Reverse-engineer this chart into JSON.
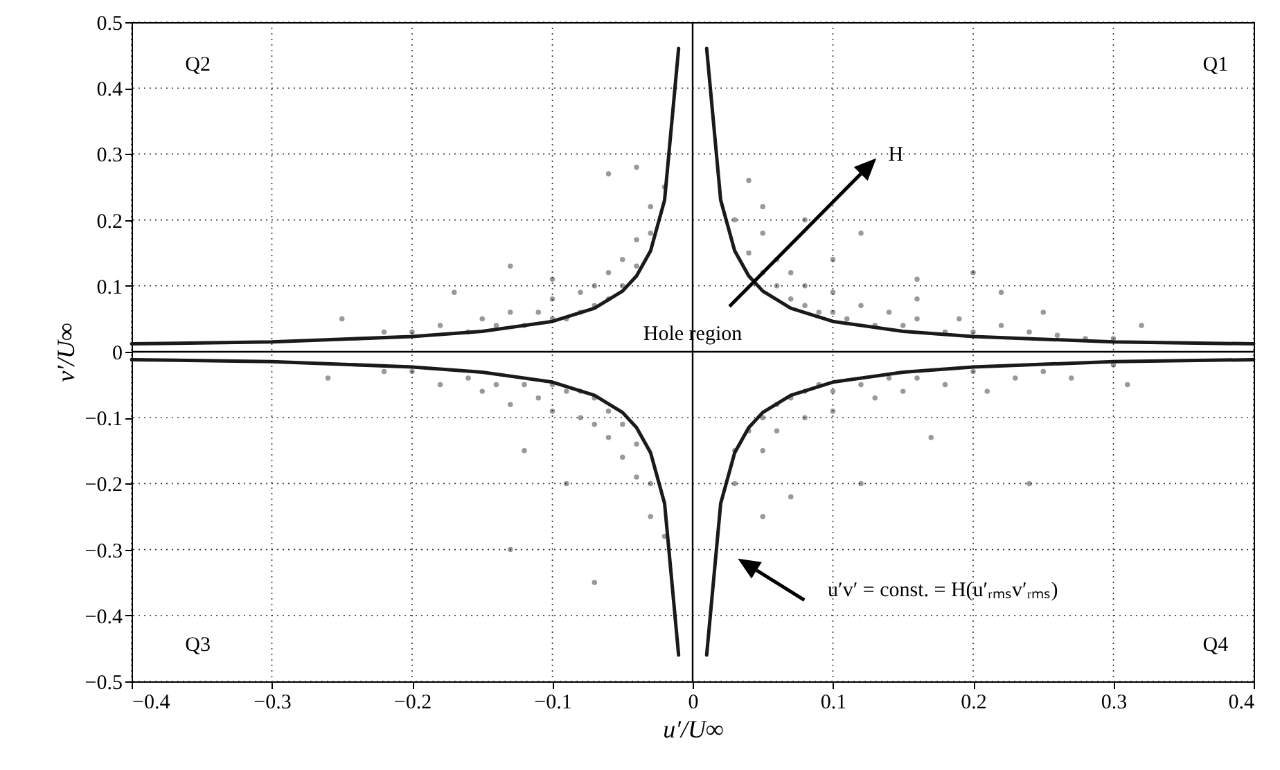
{
  "chart_data": {
    "type": "scatter",
    "xlabel": "u′/U∞",
    "ylabel": "v′/U∞",
    "xlim": [
      -0.4,
      0.4
    ],
    "ylim": [
      -0.5,
      0.5
    ],
    "xticks": [
      -0.4,
      -0.3,
      -0.2,
      -0.1,
      0,
      0.1,
      0.2,
      0.3,
      0.4
    ],
    "yticks": [
      -0.5,
      -0.4,
      -0.3,
      -0.2,
      -0.1,
      0,
      0.1,
      0.2,
      0.3,
      0.4,
      0.5
    ],
    "grid": true,
    "series": [
      {
        "color": "#999999",
        "x": [
          0.03,
          0.04,
          0.05,
          0.05,
          0.06,
          0.06,
          0.07,
          0.07,
          0.08,
          0.08,
          0.09,
          0.1,
          0.1,
          0.11,
          0.12,
          0.13,
          0.14,
          0.15,
          0.16,
          0.18,
          0.19,
          0.2,
          0.22,
          0.24,
          0.26,
          0.28,
          0.3,
          0.32,
          0.05,
          0.1,
          0.12,
          0.16,
          0.22,
          0.2,
          0.04,
          0.08,
          0.16,
          0.25,
          -0.02,
          -0.03,
          -0.03,
          -0.04,
          -0.04,
          -0.05,
          -0.05,
          -0.06,
          -0.06,
          -0.07,
          -0.07,
          -0.08,
          -0.08,
          -0.09,
          -0.1,
          -0.1,
          -0.11,
          -0.12,
          -0.13,
          -0.14,
          -0.15,
          -0.16,
          -0.18,
          -0.2,
          -0.22,
          -0.25,
          -0.13,
          -0.06,
          -0.04,
          -0.1,
          -0.17,
          -0.02,
          -0.03,
          -0.03,
          -0.04,
          -0.04,
          -0.05,
          -0.05,
          -0.06,
          -0.06,
          -0.07,
          -0.07,
          -0.08,
          -0.08,
          -0.09,
          -0.1,
          -0.1,
          -0.11,
          -0.12,
          -0.13,
          -0.14,
          -0.15,
          -0.16,
          -0.18,
          -0.2,
          -0.22,
          -0.26,
          -0.12,
          -0.07,
          -0.13,
          -0.09,
          0.03,
          0.03,
          0.04,
          0.05,
          0.05,
          0.06,
          0.06,
          0.07,
          0.08,
          0.08,
          0.09,
          0.1,
          0.1,
          0.12,
          0.13,
          0.14,
          0.15,
          0.16,
          0.18,
          0.2,
          0.21,
          0.23,
          0.25,
          0.27,
          0.3,
          0.31,
          0.07,
          0.12,
          0.24,
          0.17,
          0.05
        ],
        "values": [
          0.2,
          0.15,
          0.12,
          0.18,
          0.1,
          0.14,
          0.08,
          0.12,
          0.07,
          0.1,
          0.06,
          0.06,
          0.09,
          0.05,
          0.07,
          0.04,
          0.06,
          0.04,
          0.05,
          0.03,
          0.05,
          0.03,
          0.04,
          0.03,
          0.025,
          0.02,
          0.02,
          0.04,
          0.22,
          0.14,
          0.18,
          0.11,
          0.09,
          0.12,
          0.26,
          0.2,
          0.08,
          0.06,
          0.25,
          0.18,
          0.22,
          0.13,
          0.17,
          0.1,
          0.14,
          0.08,
          0.12,
          0.07,
          0.1,
          0.06,
          0.09,
          0.05,
          0.05,
          0.08,
          0.06,
          0.04,
          0.06,
          0.04,
          0.05,
          0.03,
          0.04,
          0.03,
          0.03,
          0.05,
          0.13,
          0.27,
          0.28,
          0.11,
          0.09,
          -0.28,
          -0.2,
          -0.25,
          -0.14,
          -0.19,
          -0.11,
          -0.16,
          -0.09,
          -0.13,
          -0.07,
          -0.11,
          -0.06,
          -0.1,
          -0.06,
          -0.05,
          -0.09,
          -0.07,
          -0.05,
          -0.08,
          -0.05,
          -0.06,
          -0.04,
          -0.05,
          -0.03,
          -0.03,
          -0.04,
          -0.15,
          -0.35,
          -0.3,
          -0.2,
          -0.2,
          -0.15,
          -0.12,
          -0.1,
          -0.15,
          -0.08,
          -0.12,
          -0.07,
          -0.06,
          -0.1,
          -0.05,
          -0.06,
          -0.09,
          -0.05,
          -0.07,
          -0.04,
          -0.06,
          -0.04,
          -0.05,
          -0.03,
          -0.06,
          -0.04,
          -0.03,
          -0.04,
          -0.02,
          -0.05,
          -0.22,
          -0.2,
          -0.2,
          -0.13,
          -0.25
        ]
      },
      {
        "type": "line",
        "color": "#1a1a1a",
        "x": [
          0.01,
          0.02,
          0.03,
          0.04,
          0.05,
          0.07,
          0.1,
          0.15,
          0.2,
          0.3,
          0.4
        ],
        "values": [
          0.46,
          0.23,
          0.153,
          0.115,
          0.092,
          0.066,
          0.046,
          0.031,
          0.023,
          0.015,
          0.012
        ]
      },
      {
        "type": "line",
        "color": "#1a1a1a",
        "x": [
          -0.01,
          -0.02,
          -0.03,
          -0.04,
          -0.05,
          -0.07,
          -0.1,
          -0.15,
          -0.2,
          -0.3,
          -0.4
        ],
        "values": [
          0.46,
          0.23,
          0.153,
          0.115,
          0.092,
          0.066,
          0.046,
          0.031,
          0.023,
          0.015,
          0.012
        ]
      },
      {
        "type": "line",
        "color": "#1a1a1a",
        "x": [
          -0.01,
          -0.02,
          -0.03,
          -0.04,
          -0.05,
          -0.07,
          -0.1,
          -0.15,
          -0.2,
          -0.3,
          -0.4
        ],
        "values": [
          -0.46,
          -0.23,
          -0.153,
          -0.115,
          -0.092,
          -0.066,
          -0.046,
          -0.031,
          -0.023,
          -0.015,
          -0.012
        ]
      },
      {
        "type": "line",
        "color": "#1a1a1a",
        "x": [
          0.01,
          0.02,
          0.03,
          0.04,
          0.05,
          0.07,
          0.1,
          0.15,
          0.2,
          0.3,
          0.4
        ],
        "values": [
          -0.46,
          -0.23,
          -0.153,
          -0.115,
          -0.092,
          -0.066,
          -0.046,
          -0.031,
          -0.023,
          -0.015,
          -0.012
        ]
      }
    ],
    "annotations": [
      "Q1",
      "Q2",
      "Q3",
      "Q4",
      "Hole region",
      "H",
      "u′v′ = const. = H(u′ᵣₘₛv′ᵣₘₛ)"
    ]
  }
}
